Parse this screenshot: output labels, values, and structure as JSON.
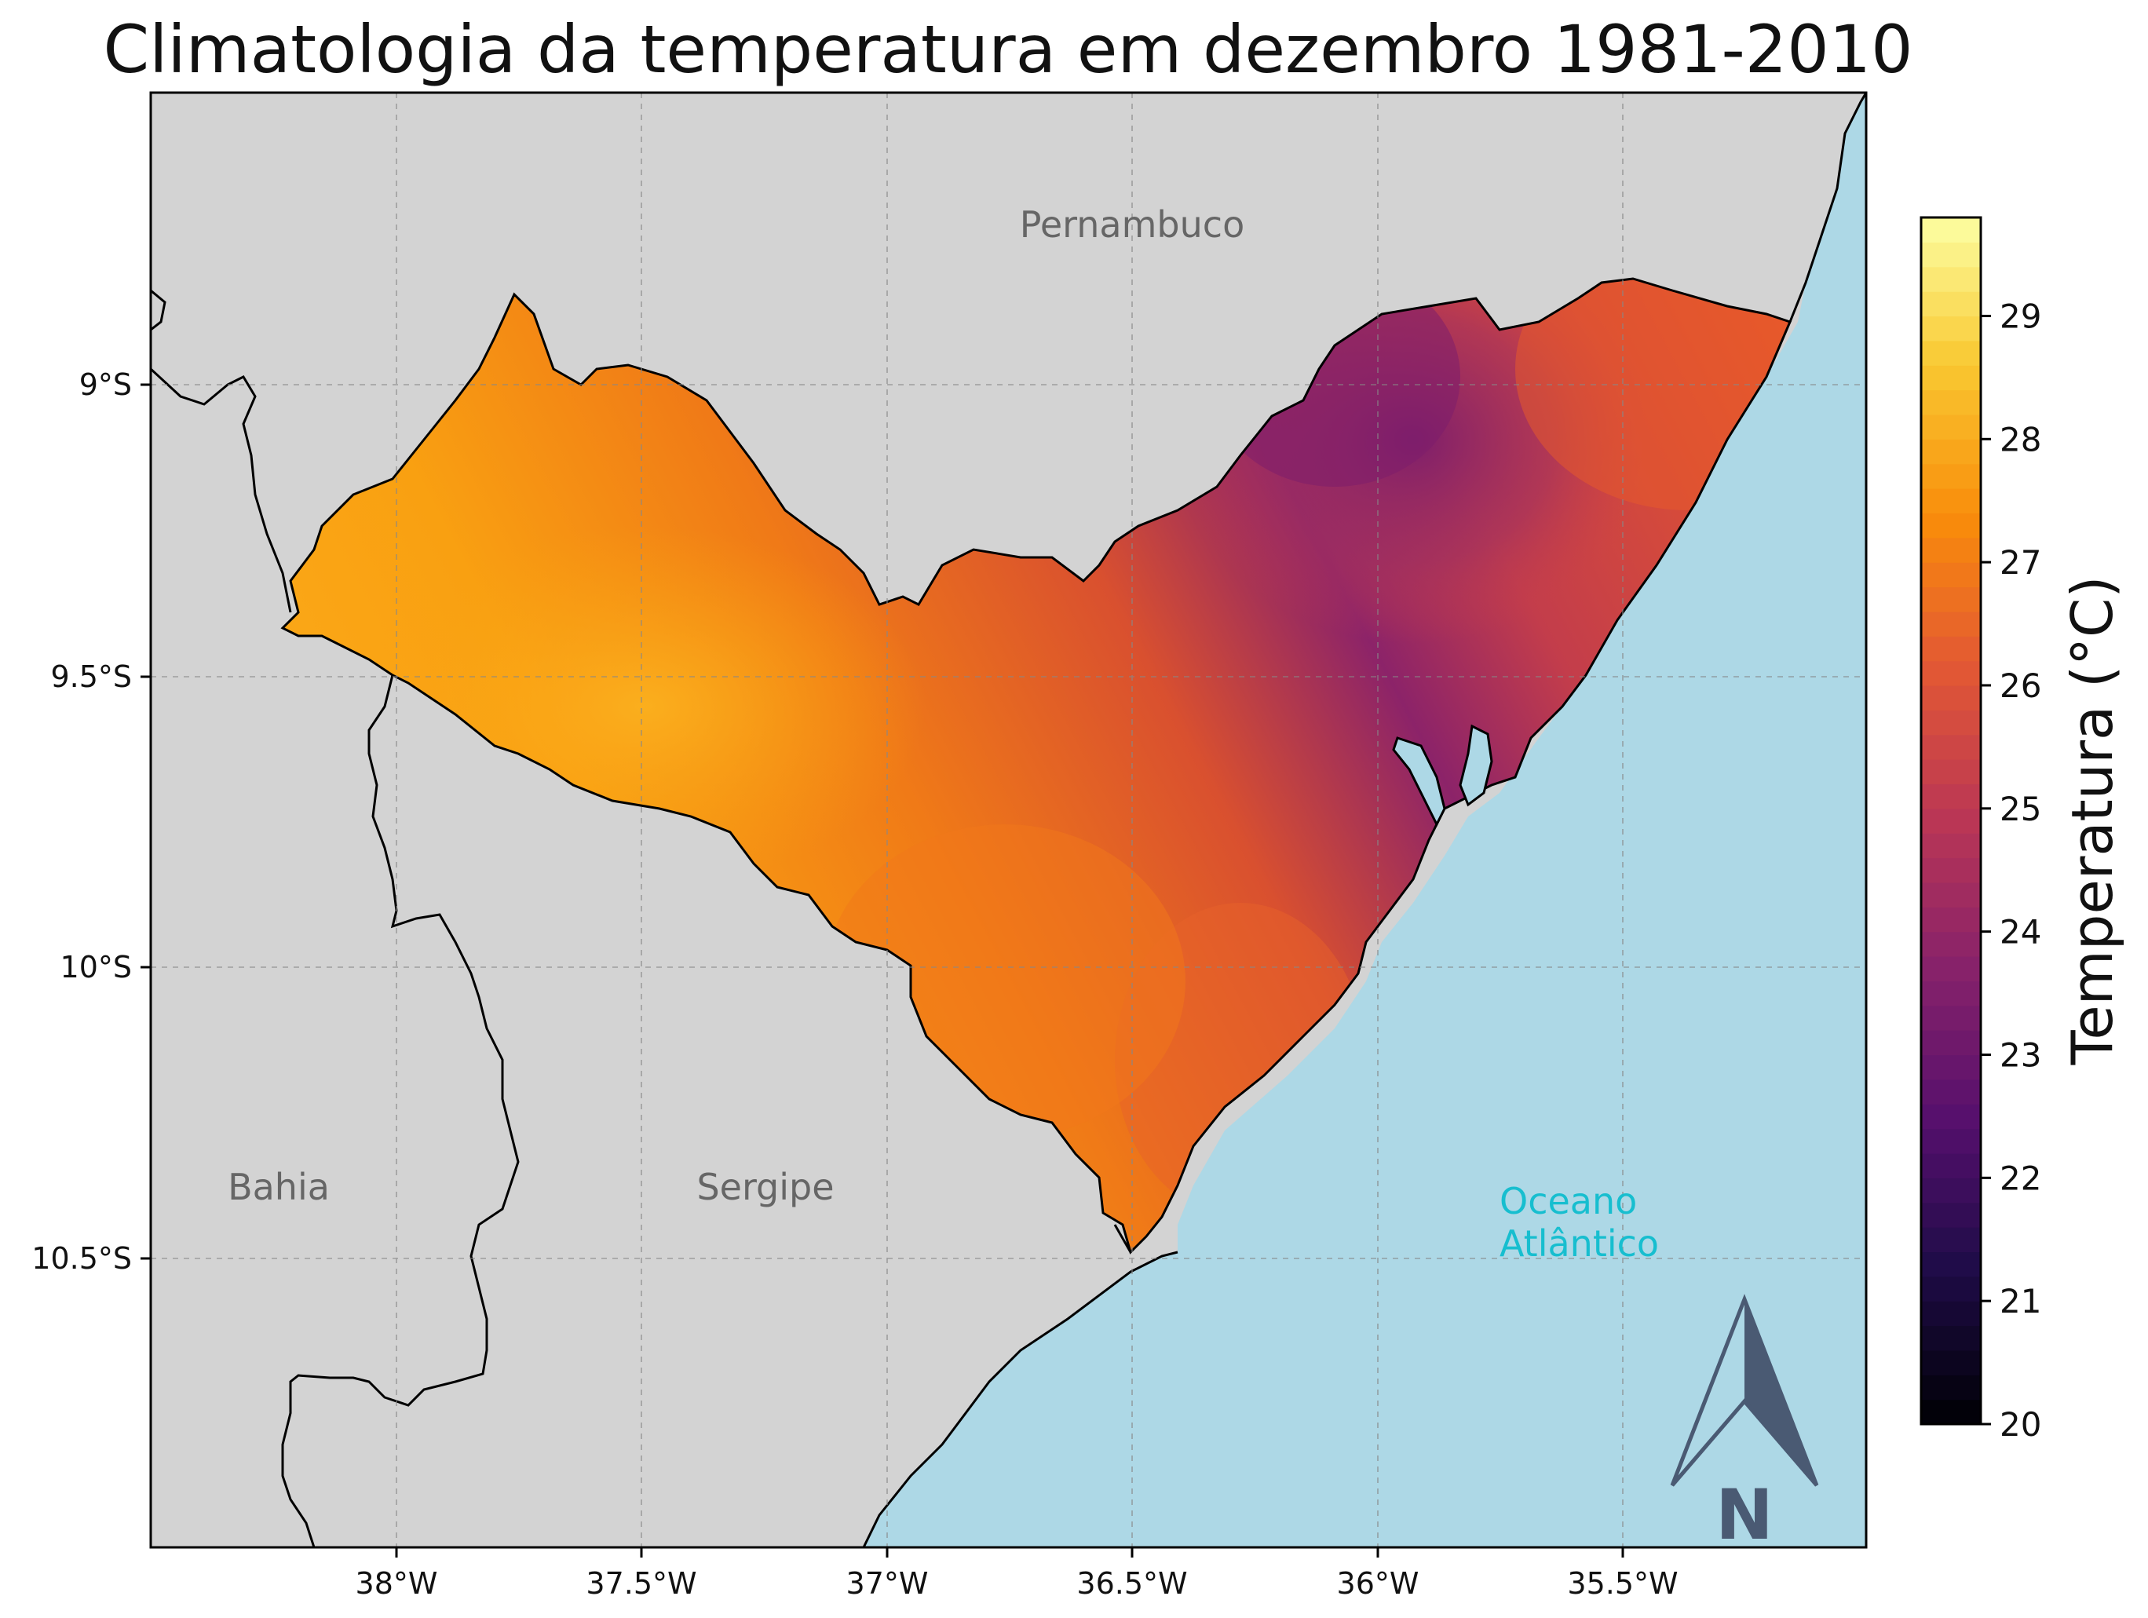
{
  "title": "Climatologia da temperatura em dezembro 1981-2010",
  "map": {
    "x_ticks": [
      "38°W",
      "37.5°W",
      "37°W",
      "36.5°W",
      "36°W",
      "35.5°W"
    ],
    "y_ticks": [
      "9°S",
      "9.5°S",
      "10°S",
      "10.5°S"
    ],
    "labels": {
      "pernambuco": "Pernambuco",
      "bahia": "Bahia",
      "sergipe": "Sergipe",
      "ocean_line1": "Oceano",
      "ocean_line2": "Atlântico"
    },
    "colors": {
      "land": "#d3d3d3",
      "ocean": "#add8e6",
      "ocean_label": "#17becf",
      "state_label": "#666666",
      "north_arrow": "#4a5a73"
    },
    "north_arrow_label": "N",
    "grid": true
  },
  "colorbar": {
    "label": "Temperatura (°C)",
    "ticks": [
      "20",
      "21",
      "22",
      "23",
      "24",
      "25",
      "26",
      "27",
      "28",
      "29"
    ],
    "min": 20,
    "max": 29.8,
    "colormap": "inferno"
  }
}
